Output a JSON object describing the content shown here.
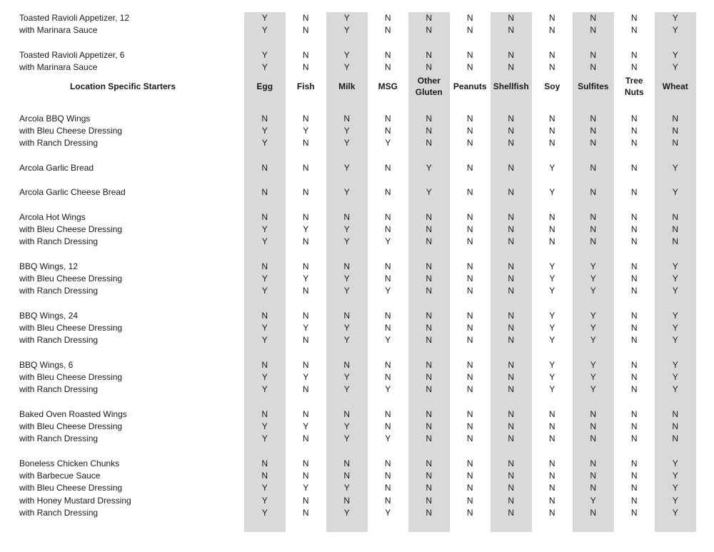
{
  "colors": {
    "shaded_column": "#d9d9d9"
  },
  "columns": [
    "Egg",
    "Fish",
    "Milk",
    "MSG",
    "Other Gluten",
    "Peanuts",
    "Shellfish",
    "Soy",
    "Sulfites",
    "Tree Nuts",
    "Wheat"
  ],
  "shaded_columns": [
    "Egg",
    "Milk",
    "Other Gluten",
    "Shellfish",
    "Sulfites",
    "Wheat"
  ],
  "top_groups": [
    [
      {
        "name": "Toasted Ravioli Appetizer, 12",
        "v": [
          "Y",
          "N",
          "Y",
          "N",
          "N",
          "N",
          "N",
          "N",
          "N",
          "N",
          "Y"
        ]
      },
      {
        "name": "with Marinara Sauce",
        "v": [
          "Y",
          "N",
          "Y",
          "N",
          "N",
          "N",
          "N",
          "N",
          "N",
          "N",
          "Y"
        ]
      }
    ],
    [
      {
        "name": "Toasted Ravioli Appetizer, 6",
        "v": [
          "Y",
          "N",
          "Y",
          "N",
          "N",
          "N",
          "N",
          "N",
          "N",
          "N",
          "Y"
        ]
      },
      {
        "name": "with Marinara Sauce",
        "v": [
          "Y",
          "N",
          "Y",
          "N",
          "N",
          "N",
          "N",
          "N",
          "N",
          "N",
          "Y"
        ]
      }
    ]
  ],
  "section_title": "Location Specific Starters",
  "groups": [
    [
      {
        "name": "Arcola BBQ Wings",
        "v": [
          "N",
          "N",
          "N",
          "N",
          "N",
          "N",
          "N",
          "N",
          "N",
          "N",
          "N"
        ]
      },
      {
        "name": "with Bleu Cheese Dressing",
        "v": [
          "Y",
          "Y",
          "Y",
          "N",
          "N",
          "N",
          "N",
          "N",
          "N",
          "N",
          "N"
        ]
      },
      {
        "name": "with Ranch Dressing",
        "v": [
          "Y",
          "N",
          "Y",
          "Y",
          "N",
          "N",
          "N",
          "N",
          "N",
          "N",
          "N"
        ]
      }
    ],
    [
      {
        "name": "Arcola Garlic Bread",
        "v": [
          "N",
          "N",
          "Y",
          "N",
          "Y",
          "N",
          "N",
          "Y",
          "N",
          "N",
          "Y"
        ]
      }
    ],
    [
      {
        "name": "Arcola Garlic Cheese Bread",
        "v": [
          "N",
          "N",
          "Y",
          "N",
          "Y",
          "N",
          "N",
          "Y",
          "N",
          "N",
          "Y"
        ]
      }
    ],
    [
      {
        "name": "Arcola Hot Wings",
        "v": [
          "N",
          "N",
          "N",
          "N",
          "N",
          "N",
          "N",
          "N",
          "N",
          "N",
          "N"
        ]
      },
      {
        "name": "with Bleu Cheese Dressing",
        "v": [
          "Y",
          "Y",
          "Y",
          "N",
          "N",
          "N",
          "N",
          "N",
          "N",
          "N",
          "N"
        ]
      },
      {
        "name": "with Ranch Dressing",
        "v": [
          "Y",
          "N",
          "Y",
          "Y",
          "N",
          "N",
          "N",
          "N",
          "N",
          "N",
          "N"
        ]
      }
    ],
    [
      {
        "name": "BBQ Wings, 12",
        "v": [
          "N",
          "N",
          "N",
          "N",
          "N",
          "N",
          "N",
          "Y",
          "Y",
          "N",
          "Y"
        ]
      },
      {
        "name": "with Bleu Cheese Dressing",
        "v": [
          "Y",
          "Y",
          "Y",
          "N",
          "N",
          "N",
          "N",
          "Y",
          "Y",
          "N",
          "Y"
        ]
      },
      {
        "name": "with Ranch Dressing",
        "v": [
          "Y",
          "N",
          "Y",
          "Y",
          "N",
          "N",
          "N",
          "Y",
          "Y",
          "N",
          "Y"
        ]
      }
    ],
    [
      {
        "name": "BBQ Wings, 24",
        "v": [
          "N",
          "N",
          "N",
          "N",
          "N",
          "N",
          "N",
          "Y",
          "Y",
          "N",
          "Y"
        ]
      },
      {
        "name": "with Bleu Cheese Dressing",
        "v": [
          "Y",
          "Y",
          "Y",
          "N",
          "N",
          "N",
          "N",
          "Y",
          "Y",
          "N",
          "Y"
        ]
      },
      {
        "name": "with Ranch Dressing",
        "v": [
          "Y",
          "N",
          "Y",
          "Y",
          "N",
          "N",
          "N",
          "Y",
          "Y",
          "N",
          "Y"
        ]
      }
    ],
    [
      {
        "name": "BBQ Wings, 6",
        "v": [
          "N",
          "N",
          "N",
          "N",
          "N",
          "N",
          "N",
          "Y",
          "Y",
          "N",
          "Y"
        ]
      },
      {
        "name": "with Bleu Cheese Dressing",
        "v": [
          "Y",
          "Y",
          "Y",
          "N",
          "N",
          "N",
          "N",
          "Y",
          "Y",
          "N",
          "Y"
        ]
      },
      {
        "name": "with Ranch Dressing",
        "v": [
          "Y",
          "N",
          "Y",
          "Y",
          "N",
          "N",
          "N",
          "Y",
          "Y",
          "N",
          "Y"
        ]
      }
    ],
    [
      {
        "name": "Baked Oven Roasted Wings",
        "v": [
          "N",
          "N",
          "N",
          "N",
          "N",
          "N",
          "N",
          "N",
          "N",
          "N",
          "N"
        ]
      },
      {
        "name": "with Bleu Cheese Dressing",
        "v": [
          "Y",
          "Y",
          "Y",
          "N",
          "N",
          "N",
          "N",
          "N",
          "N",
          "N",
          "N"
        ]
      },
      {
        "name": "with Ranch Dressing",
        "v": [
          "Y",
          "N",
          "Y",
          "Y",
          "N",
          "N",
          "N",
          "N",
          "N",
          "N",
          "N"
        ]
      }
    ],
    [
      {
        "name": "Boneless Chicken Chunks",
        "v": [
          "N",
          "N",
          "N",
          "N",
          "N",
          "N",
          "N",
          "N",
          "N",
          "N",
          "Y"
        ]
      },
      {
        "name": "with Barbecue Sauce",
        "v": [
          "N",
          "N",
          "N",
          "N",
          "N",
          "N",
          "N",
          "N",
          "N",
          "N",
          "Y"
        ]
      },
      {
        "name": "with Bleu Cheese Dressing",
        "v": [
          "Y",
          "Y",
          "Y",
          "N",
          "N",
          "N",
          "N",
          "N",
          "N",
          "N",
          "Y"
        ]
      },
      {
        "name": "with Honey Mustard Dressing",
        "v": [
          "Y",
          "N",
          "N",
          "N",
          "N",
          "N",
          "N",
          "N",
          "Y",
          "N",
          "Y"
        ]
      },
      {
        "name": "with Ranch Dressing",
        "v": [
          "Y",
          "N",
          "Y",
          "Y",
          "N",
          "N",
          "N",
          "N",
          "N",
          "N",
          "Y"
        ]
      }
    ]
  ]
}
